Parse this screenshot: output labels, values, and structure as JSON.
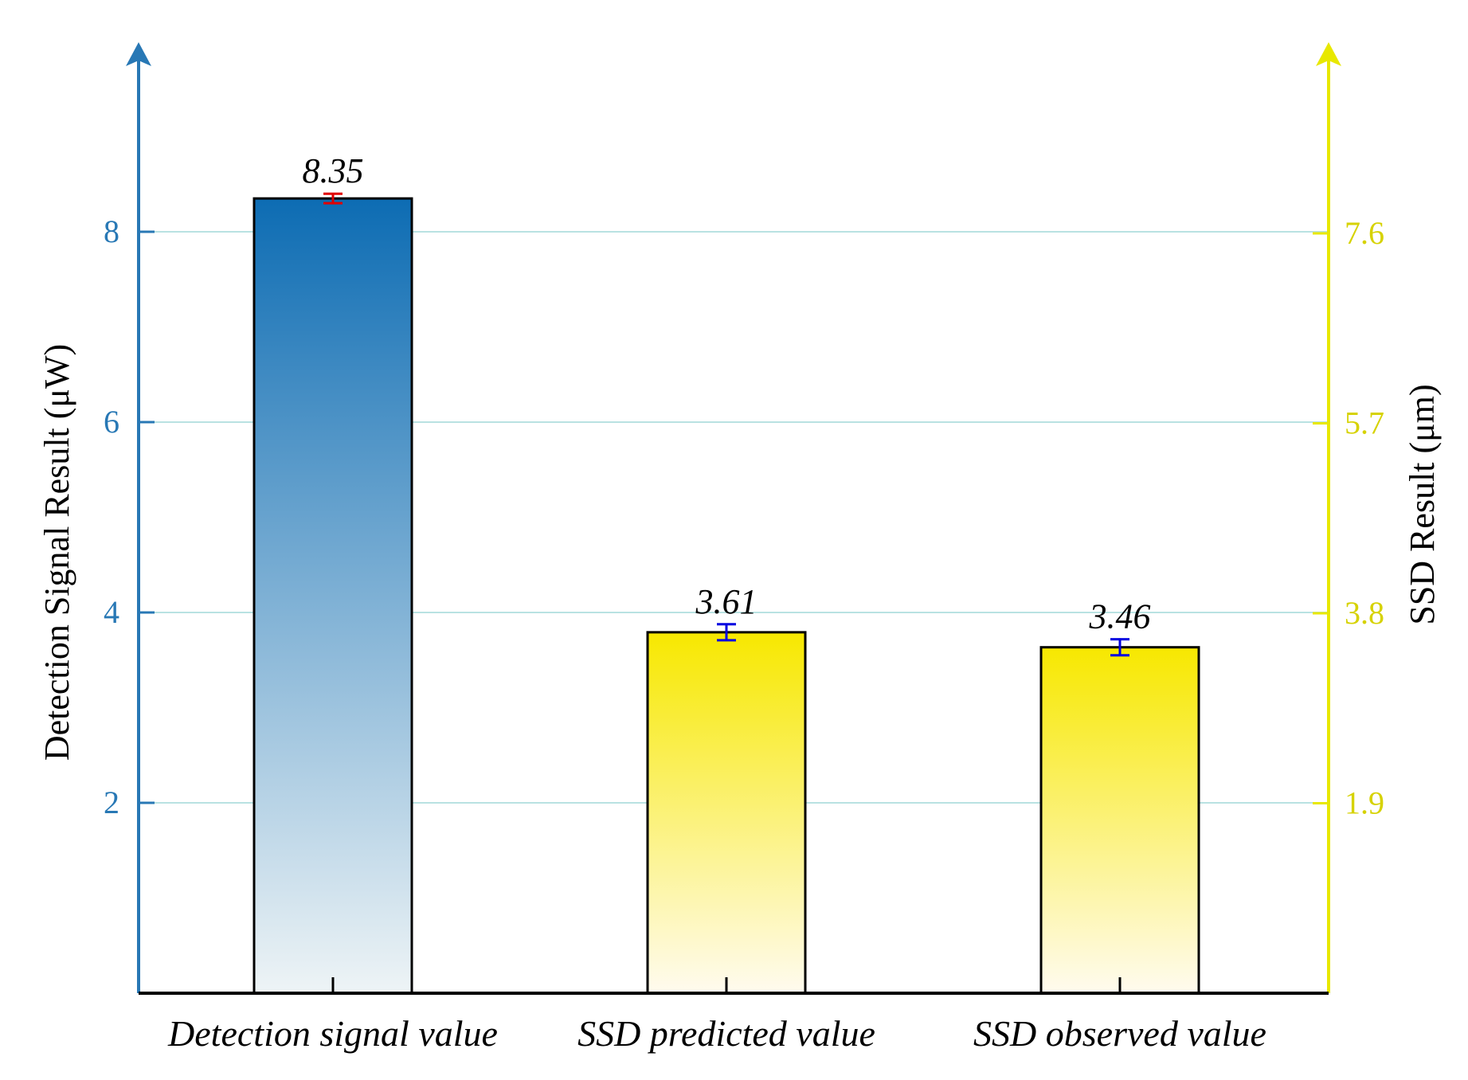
{
  "chart_data": {
    "type": "bar",
    "categories": [
      "Detection signal value",
      "SSD predicted value",
      "SSD observed value"
    ],
    "values": [
      8.35,
      3.61,
      3.46
    ],
    "errors": [
      0.05,
      0.08,
      0.08
    ],
    "value_labels": [
      "8.35",
      "3.61",
      "3.46"
    ],
    "axis_of_bar": [
      "left",
      "right",
      "right"
    ],
    "left_axis": {
      "label": "Detection Signal Result (μW)",
      "ticks": [
        2,
        4,
        6,
        8
      ],
      "tick_labels": [
        "2",
        "4",
        "6",
        "8"
      ],
      "ylim": [
        0,
        10
      ],
      "color": "#2878b5"
    },
    "right_axis": {
      "label": "SSD Result (μm)",
      "ticks": [
        1.9,
        3.8,
        5.7,
        7.6
      ],
      "tick_labels": [
        "1.9",
        "3.8",
        "5.7",
        "7.6"
      ],
      "ylim": [
        0,
        10
      ],
      "color": "#e8e800"
    },
    "grid": true,
    "colors": {
      "detection_bar_top": "#0d6cb3",
      "detection_bar_bottom": "#eef4f6",
      "ssd_bar_top": "#f7e800",
      "ssd_bar_bottom": "#fffbef",
      "error_red": "#e00000",
      "error_blue": "#0000e0",
      "grid": "#b9e2e2"
    }
  }
}
